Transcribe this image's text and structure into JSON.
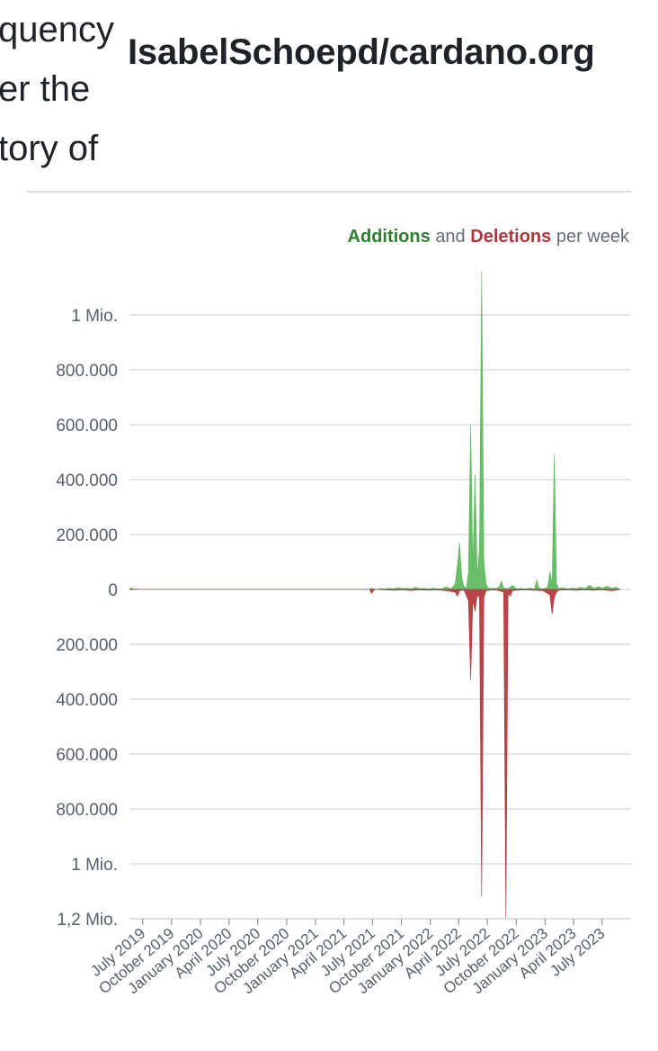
{
  "header": {
    "partial_title_lines": [
      "quency",
      "er the",
      "tory of"
    ],
    "repo_name": "IsabelSchoepd/cardano.org"
  },
  "legend": {
    "additions": "Additions",
    "and": "and",
    "deletions": "Deletions",
    "suffix": "per week"
  },
  "colors": {
    "additions": "#5cb85c",
    "deletions": "#b3343a",
    "grid": "#d0d7de",
    "text": "#57606a"
  },
  "chart_data": {
    "type": "area",
    "xlabel": "",
    "ylabel": "",
    "ylim": [
      -1200000,
      1000000
    ],
    "y_ticks": [
      1000000,
      800000,
      600000,
      400000,
      200000,
      0,
      -200000,
      -400000,
      -600000,
      -800000,
      -1000000,
      -1200000
    ],
    "y_tick_labels": [
      "1 Mio.",
      "800.000",
      "600.000",
      "400.000",
      "200.000",
      "0",
      "200.000",
      "400.000",
      "600.000",
      "800.000",
      "1 Mio.",
      "1,2 Mio."
    ],
    "x_range": [
      "2019-05-20",
      "2023-10-01"
    ],
    "x_tick_labels": [
      "July 2019",
      "October 2019",
      "January 2020",
      "April 2020",
      "July 2020",
      "October 2020",
      "January 2021",
      "April 2021",
      "July 2021",
      "October 2021",
      "January 2022",
      "April 2022",
      "July 2022",
      "October 2022",
      "January 2023",
      "April 2023",
      "July 2023"
    ],
    "x_tick_dates": [
      "2019-07-01",
      "2019-10-01",
      "2020-01-01",
      "2020-04-01",
      "2020-07-01",
      "2020-10-01",
      "2021-01-01",
      "2021-04-01",
      "2021-07-01",
      "2021-10-01",
      "2022-01-01",
      "2022-04-01",
      "2022-07-01",
      "2022-10-01",
      "2023-01-01",
      "2023-04-01",
      "2023-07-01"
    ],
    "grid": true,
    "legend_position": "top-right",
    "series": [
      {
        "name": "Additions",
        "points": [
          [
            "2019-05-20",
            2000
          ],
          [
            "2019-05-27",
            6000
          ],
          [
            "2019-06-03",
            1000
          ],
          [
            "2019-06-10",
            3000
          ],
          [
            "2019-06-17",
            500
          ],
          [
            "2019-06-24",
            0
          ],
          [
            "2021-06-21",
            0
          ],
          [
            "2021-06-28",
            5000
          ],
          [
            "2021-07-05",
            2000
          ],
          [
            "2021-07-12",
            0
          ],
          [
            "2021-07-26",
            3000
          ],
          [
            "2021-08-09",
            1000
          ],
          [
            "2021-08-23",
            4000
          ],
          [
            "2021-09-06",
            2000
          ],
          [
            "2021-09-20",
            6000
          ],
          [
            "2021-10-04",
            3000
          ],
          [
            "2021-10-18",
            5000
          ],
          [
            "2021-11-01",
            2000
          ],
          [
            "2021-11-15",
            8000
          ],
          [
            "2021-11-29",
            3000
          ],
          [
            "2021-12-13",
            4000
          ],
          [
            "2021-12-27",
            1000
          ],
          [
            "2022-01-10",
            5000
          ],
          [
            "2022-01-24",
            2000
          ],
          [
            "2022-02-07",
            3000
          ],
          [
            "2022-02-21",
            10000
          ],
          [
            "2022-03-07",
            2000
          ],
          [
            "2022-03-21",
            20000
          ],
          [
            "2022-03-28",
            90000
          ],
          [
            "2022-04-04",
            170000
          ],
          [
            "2022-04-11",
            40000
          ],
          [
            "2022-04-18",
            10000
          ],
          [
            "2022-04-25",
            5000
          ],
          [
            "2022-05-02",
            60000
          ],
          [
            "2022-05-09",
            600000
          ],
          [
            "2022-05-16",
            80000
          ],
          [
            "2022-05-23",
            420000
          ],
          [
            "2022-05-30",
            50000
          ],
          [
            "2022-06-06",
            150000
          ],
          [
            "2022-06-13",
            1160000
          ],
          [
            "2022-06-20",
            100000
          ],
          [
            "2022-06-27",
            20000
          ],
          [
            "2022-07-04",
            5000
          ],
          [
            "2022-07-18",
            3000
          ],
          [
            "2022-08-01",
            5000
          ],
          [
            "2022-08-08",
            10000
          ],
          [
            "2022-08-15",
            30000
          ],
          [
            "2022-08-22",
            5000
          ],
          [
            "2022-09-05",
            3000
          ],
          [
            "2022-09-19",
            15000
          ],
          [
            "2022-10-03",
            2000
          ],
          [
            "2022-10-17",
            4000
          ],
          [
            "2022-10-31",
            2000
          ],
          [
            "2022-11-14",
            5000
          ],
          [
            "2022-11-28",
            2000
          ],
          [
            "2022-12-05",
            35000
          ],
          [
            "2022-12-12",
            5000
          ],
          [
            "2022-12-26",
            2000
          ],
          [
            "2023-01-09",
            8000
          ],
          [
            "2023-01-16",
            65000
          ],
          [
            "2023-01-23",
            20000
          ],
          [
            "2023-01-30",
            490000
          ],
          [
            "2023-02-06",
            20000
          ],
          [
            "2023-02-13",
            3000
          ],
          [
            "2023-02-27",
            6000
          ],
          [
            "2023-03-13",
            2000
          ],
          [
            "2023-03-27",
            5000
          ],
          [
            "2023-04-10",
            3000
          ],
          [
            "2023-04-24",
            8000
          ],
          [
            "2023-05-08",
            3000
          ],
          [
            "2023-05-22",
            15000
          ],
          [
            "2023-06-05",
            4000
          ],
          [
            "2023-06-19",
            10000
          ],
          [
            "2023-07-03",
            5000
          ],
          [
            "2023-07-17",
            12000
          ],
          [
            "2023-07-31",
            4000
          ],
          [
            "2023-08-14",
            8000
          ],
          [
            "2023-08-28",
            0
          ]
        ]
      },
      {
        "name": "Deletions",
        "points": [
          [
            "2019-05-20",
            0
          ],
          [
            "2019-05-27",
            -2000
          ],
          [
            "2019-06-03",
            0
          ],
          [
            "2021-06-21",
            0
          ],
          [
            "2021-06-28",
            -15000
          ],
          [
            "2021-07-05",
            -3000
          ],
          [
            "2021-07-12",
            0
          ],
          [
            "2021-08-09",
            -2000
          ],
          [
            "2021-09-06",
            -3000
          ],
          [
            "2021-10-04",
            -2000
          ],
          [
            "2021-11-01",
            -4000
          ],
          [
            "2021-11-29",
            -2000
          ],
          [
            "2021-12-27",
            -3000
          ],
          [
            "2022-01-24",
            -2000
          ],
          [
            "2022-02-21",
            -5000
          ],
          [
            "2022-03-21",
            -10000
          ],
          [
            "2022-03-28",
            -25000
          ],
          [
            "2022-04-04",
            -5000
          ],
          [
            "2022-04-18",
            -3000
          ],
          [
            "2022-05-02",
            -40000
          ],
          [
            "2022-05-09",
            -330000
          ],
          [
            "2022-05-16",
            -40000
          ],
          [
            "2022-05-23",
            -80000
          ],
          [
            "2022-05-30",
            -20000
          ],
          [
            "2022-06-06",
            -30000
          ],
          [
            "2022-06-13",
            -1120000
          ],
          [
            "2022-06-20",
            -30000
          ],
          [
            "2022-06-27",
            -5000
          ],
          [
            "2022-07-18",
            -2000
          ],
          [
            "2022-08-01",
            -3000
          ],
          [
            "2022-08-08",
            -5000
          ],
          [
            "2022-08-22",
            -10000
          ],
          [
            "2022-08-29",
            -1200000
          ],
          [
            "2022-09-05",
            -15000
          ],
          [
            "2022-09-12",
            -25000
          ],
          [
            "2022-09-19",
            -5000
          ],
          [
            "2022-10-03",
            -3000
          ],
          [
            "2022-10-31",
            -2000
          ],
          [
            "2022-11-28",
            -3000
          ],
          [
            "2022-12-26",
            -5000
          ],
          [
            "2023-01-16",
            -20000
          ],
          [
            "2023-01-23",
            -90000
          ],
          [
            "2023-01-30",
            -30000
          ],
          [
            "2023-02-06",
            -10000
          ],
          [
            "2023-02-13",
            -3000
          ],
          [
            "2023-03-13",
            -2000
          ],
          [
            "2023-04-10",
            -3000
          ],
          [
            "2023-05-08",
            -2000
          ],
          [
            "2023-06-05",
            -3000
          ],
          [
            "2023-07-03",
            -2000
          ],
          [
            "2023-07-31",
            -5000
          ],
          [
            "2023-08-14",
            -3000
          ],
          [
            "2023-08-28",
            0
          ]
        ]
      }
    ]
  }
}
